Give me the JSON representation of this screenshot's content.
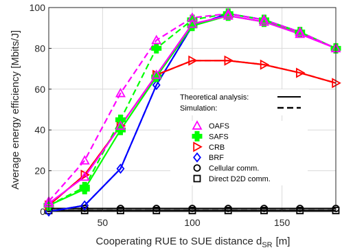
{
  "chart_data": {
    "type": "line",
    "xlabel": "Cooperating RUE to SUE distance d",
    "xlabel_sub": "SR",
    "xlabel_unit": "[m]",
    "ylabel": "Average energy efficiency [Mbits/J]",
    "xlim": [
      20,
      180
    ],
    "ylim": [
      0,
      100
    ],
    "xticks": [
      50,
      100,
      150
    ],
    "yticks": [
      0,
      20,
      40,
      60,
      80,
      100
    ],
    "grid": true,
    "style_legend": [
      {
        "label": "Theoretical analysis:",
        "dash": "solid"
      },
      {
        "label": "Simulation:",
        "dash": "dashed"
      }
    ],
    "series": [
      {
        "name": "OAFS",
        "color": "#ff00ff",
        "marker": "triangle-up",
        "x": [
          20,
          40,
          60,
          80,
          100,
          120,
          140,
          160,
          180
        ],
        "theory": [
          4,
          17,
          42,
          67,
          92,
          96,
          93,
          87,
          80
        ],
        "simulation": [
          5,
          25,
          58,
          84,
          95,
          97,
          94,
          88,
          80
        ]
      },
      {
        "name": "SAFS",
        "color": "#00ff00",
        "marker": "plus",
        "x": [
          20,
          40,
          60,
          80,
          100,
          120,
          140,
          160,
          180
        ],
        "theory": [
          3,
          11,
          40,
          66,
          91,
          96,
          93,
          88,
          80
        ],
        "simulation": [
          3,
          12,
          45,
          80,
          94,
          97,
          94,
          88,
          80
        ]
      },
      {
        "name": "CRB",
        "color": "#ff0000",
        "marker": "triangle-right",
        "x": [
          20,
          40,
          60,
          80,
          100,
          120,
          140,
          160,
          180
        ],
        "theory": [
          3,
          18,
          42,
          67,
          74,
          74,
          72,
          68,
          63
        ],
        "simulation": [
          3,
          18,
          42,
          67,
          74,
          74,
          72,
          68,
          63
        ]
      },
      {
        "name": "BRF",
        "color": "#0000ff",
        "marker": "diamond",
        "x": [
          20,
          40,
          60,
          80,
          100,
          120,
          140,
          160,
          180
        ],
        "theory": [
          0,
          3,
          21,
          62,
          91,
          97,
          94,
          88,
          80
        ],
        "simulation": [
          0,
          3,
          21,
          62,
          91,
          97,
          94,
          88,
          80
        ]
      },
      {
        "name": "Cellular comm.",
        "color": "#000000",
        "marker": "circle",
        "x": [
          20,
          40,
          60,
          80,
          100,
          120,
          140,
          160,
          180
        ],
        "theory": [
          1.5,
          1.5,
          1.5,
          1.5,
          1.5,
          1.5,
          1.5,
          1.5,
          1.5
        ],
        "simulation": [
          1.5,
          1.5,
          1.5,
          1.5,
          1.5,
          1.5,
          1.5,
          1.5,
          1.5
        ]
      },
      {
        "name": "Direct D2D comm.",
        "color": "#000000",
        "marker": "square",
        "x": [
          20,
          40,
          60,
          80,
          100,
          120,
          140,
          160,
          180
        ],
        "theory": [
          0.5,
          0.5,
          0.5,
          0.5,
          0.5,
          0.5,
          0.5,
          0.5,
          0.5
        ],
        "simulation": [
          0.5,
          0.5,
          0.5,
          0.5,
          0.5,
          0.5,
          0.5,
          0.5,
          0.5
        ]
      }
    ]
  }
}
